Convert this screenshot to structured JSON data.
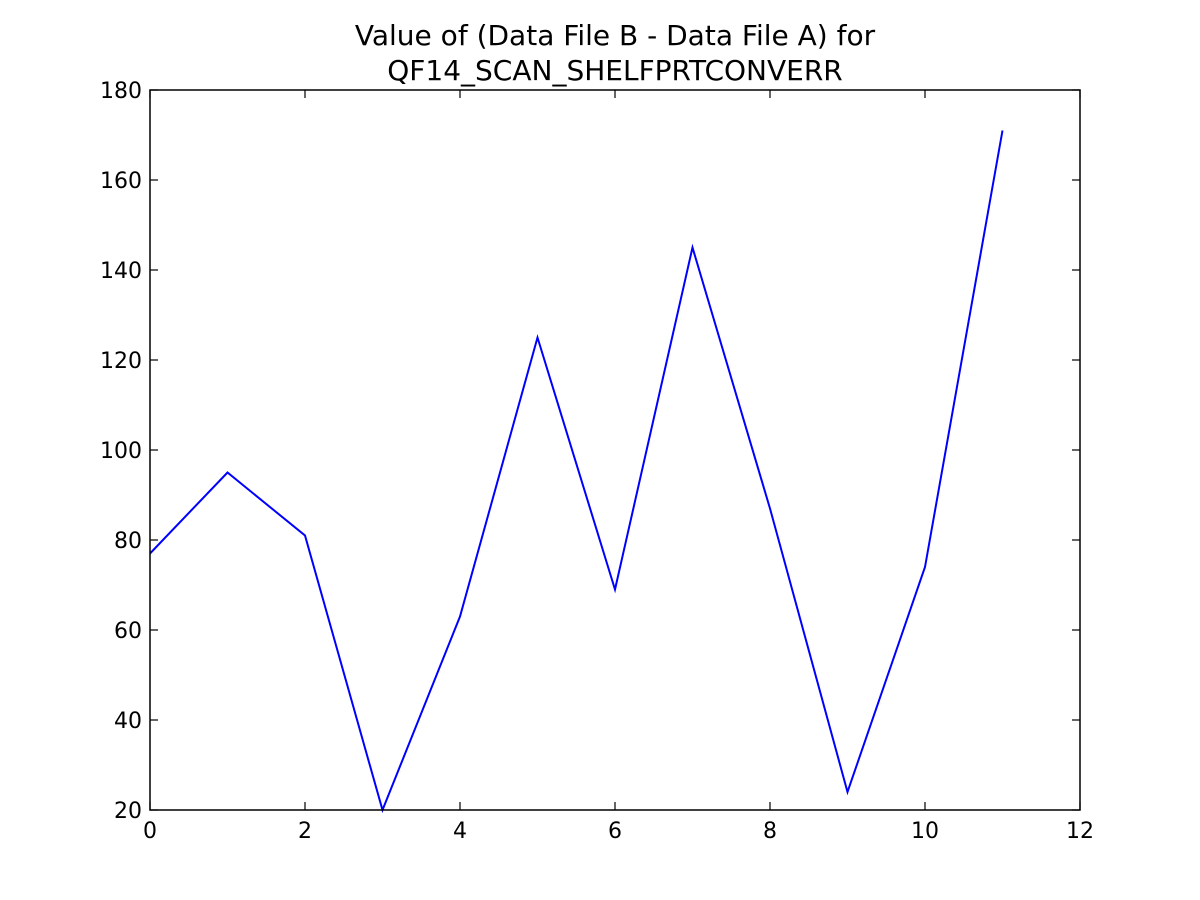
{
  "chart_data": {
    "type": "line",
    "title_lines": [
      "Value of (Data File B - Data File A) for",
      "QF14_SCAN_SHELFPRTCONVERR"
    ],
    "xlabel": "",
    "ylabel": "",
    "xlim": [
      0,
      12
    ],
    "ylim": [
      20,
      180
    ],
    "x_ticks": [
      "0",
      "2",
      "4",
      "6",
      "8",
      "10",
      "12"
    ],
    "y_ticks": [
      "20",
      "40",
      "60",
      "80",
      "100",
      "120",
      "140",
      "160",
      "180"
    ],
    "grid": false,
    "legend": false,
    "series": [
      {
        "color": "#0000ff",
        "x": [
          0,
          1,
          2,
          3,
          4,
          5,
          6,
          7,
          8,
          9,
          10,
          11
        ],
        "y": [
          77,
          95,
          81,
          20,
          63,
          125,
          69,
          145,
          87,
          24,
          74,
          171
        ]
      }
    ]
  }
}
